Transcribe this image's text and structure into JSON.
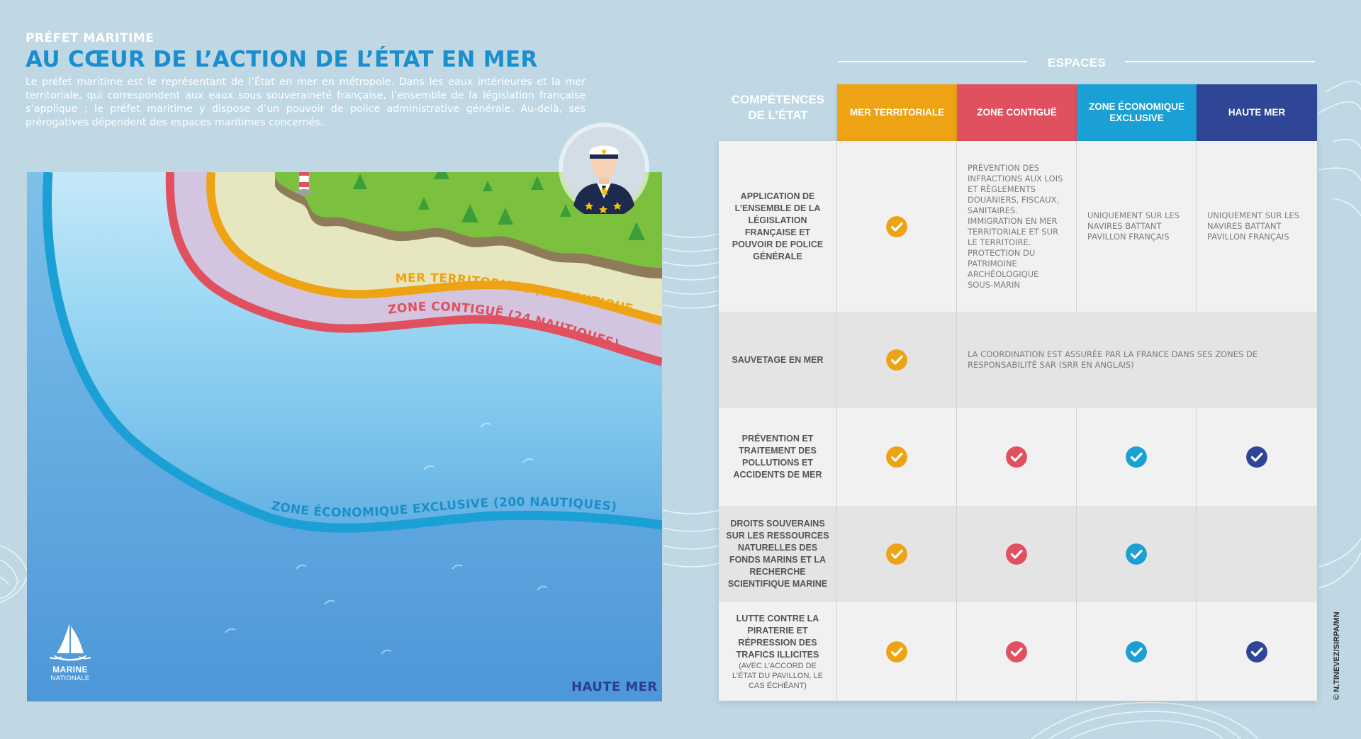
{
  "header": {
    "kicker": "PRÉFET MARITIME",
    "title": "AU CŒUR DE L’ACTION DE L’ÉTAT EN MER",
    "intro": "Le préfet maritime est le représentant de l’État en mer en métropole. Dans les eaux intérieures et la mer territoriale, qui correspondent aux eaux sous souveraineté française, l’ensemble de la législation française s’applique ; le préfet maritime y dispose d’un pouvoir de police administrative générale. Au-delà, ses prérogatives dépendent des espaces maritimes concernés."
  },
  "map": {
    "zones": {
      "territorial": "MER TERRITORIALE (12 NAUTIQUES)",
      "contigue": "ZONE CONTIGUË (24 NAUTIQUES)",
      "zee": "ZONE ÉCONOMIQUE EXCLUSIVE (200 NAUTIQUES)"
    },
    "haute_mer": "HAUTE MER",
    "logo_top": "MARINE",
    "logo_bottom": "NATIONALE"
  },
  "table": {
    "espaces_label": "ESPACES",
    "competences_label_1": "COMPÉTENCES",
    "competences_label_2": "DE L’ÉTAT",
    "columns": [
      {
        "line1": "MER TERRITORIALE",
        "line2": "",
        "color": "#eea315"
      },
      {
        "line1": "ZONE CONTIGUË",
        "line2": "",
        "color": "#e0505e"
      },
      {
        "line1": "ZONE ÉCONOMIQUE",
        "line2": "EXCLUSIVE",
        "color": "#1ba0d6"
      },
      {
        "line1": "HAUTE MER",
        "line2": "",
        "color": "#2f4596"
      }
    ],
    "rows": [
      {
        "label": "APPLICATION DE L’ENSEMBLE DE LA LÉGISLATION FRANÇAISE ET POUVOIR DE POLICE GÉNÉRALE",
        "sub": "",
        "cells": [
          "check",
          "Prévention des infractions aux lois et règlements douaniers, fiscaux, sanitaires. Immigration en mer territoriale et sur le territoire. Protection du patrimoine archéologique sous-marin",
          "Uniquement sur les navires battant pavillon français",
          "Uniquement sur les navires battant pavillon français"
        ]
      },
      {
        "label": "SAUVETAGE EN MER",
        "sub": "",
        "cells": [
          "check",
          "La coordination est assurée par la France dans ses zones de responsabilité SAR (SRR en anglais)"
        ]
      },
      {
        "label": "PRÉVENTION ET TRAITEMENT DES POLLUTIONS ET ACCIDENTS DE MER",
        "sub": "",
        "cells": [
          "check",
          "check",
          "check",
          "check"
        ]
      },
      {
        "label": "DROITS SOUVERAINS SUR LES RESSOURCES NATURELLES DES FONDS MARINS ET LA RECHERCHE SCIENTIFIQUE MARINE",
        "sub": "",
        "cells": [
          "check",
          "check",
          "check",
          ""
        ]
      },
      {
        "label": "LUTTE CONTRE LA PIRATERIE ET RÉPRESSION DES TRAFICS ILLICITES",
        "sub": "(AVEC L’ACCORD DE L’ÉTAT DU PAVILLON, LE CAS ÉCHÉANT)",
        "cells": [
          "check",
          "check",
          "check",
          "check"
        ]
      }
    ]
  },
  "credit": "© N.TINEVEZ/SIRPA/MN"
}
